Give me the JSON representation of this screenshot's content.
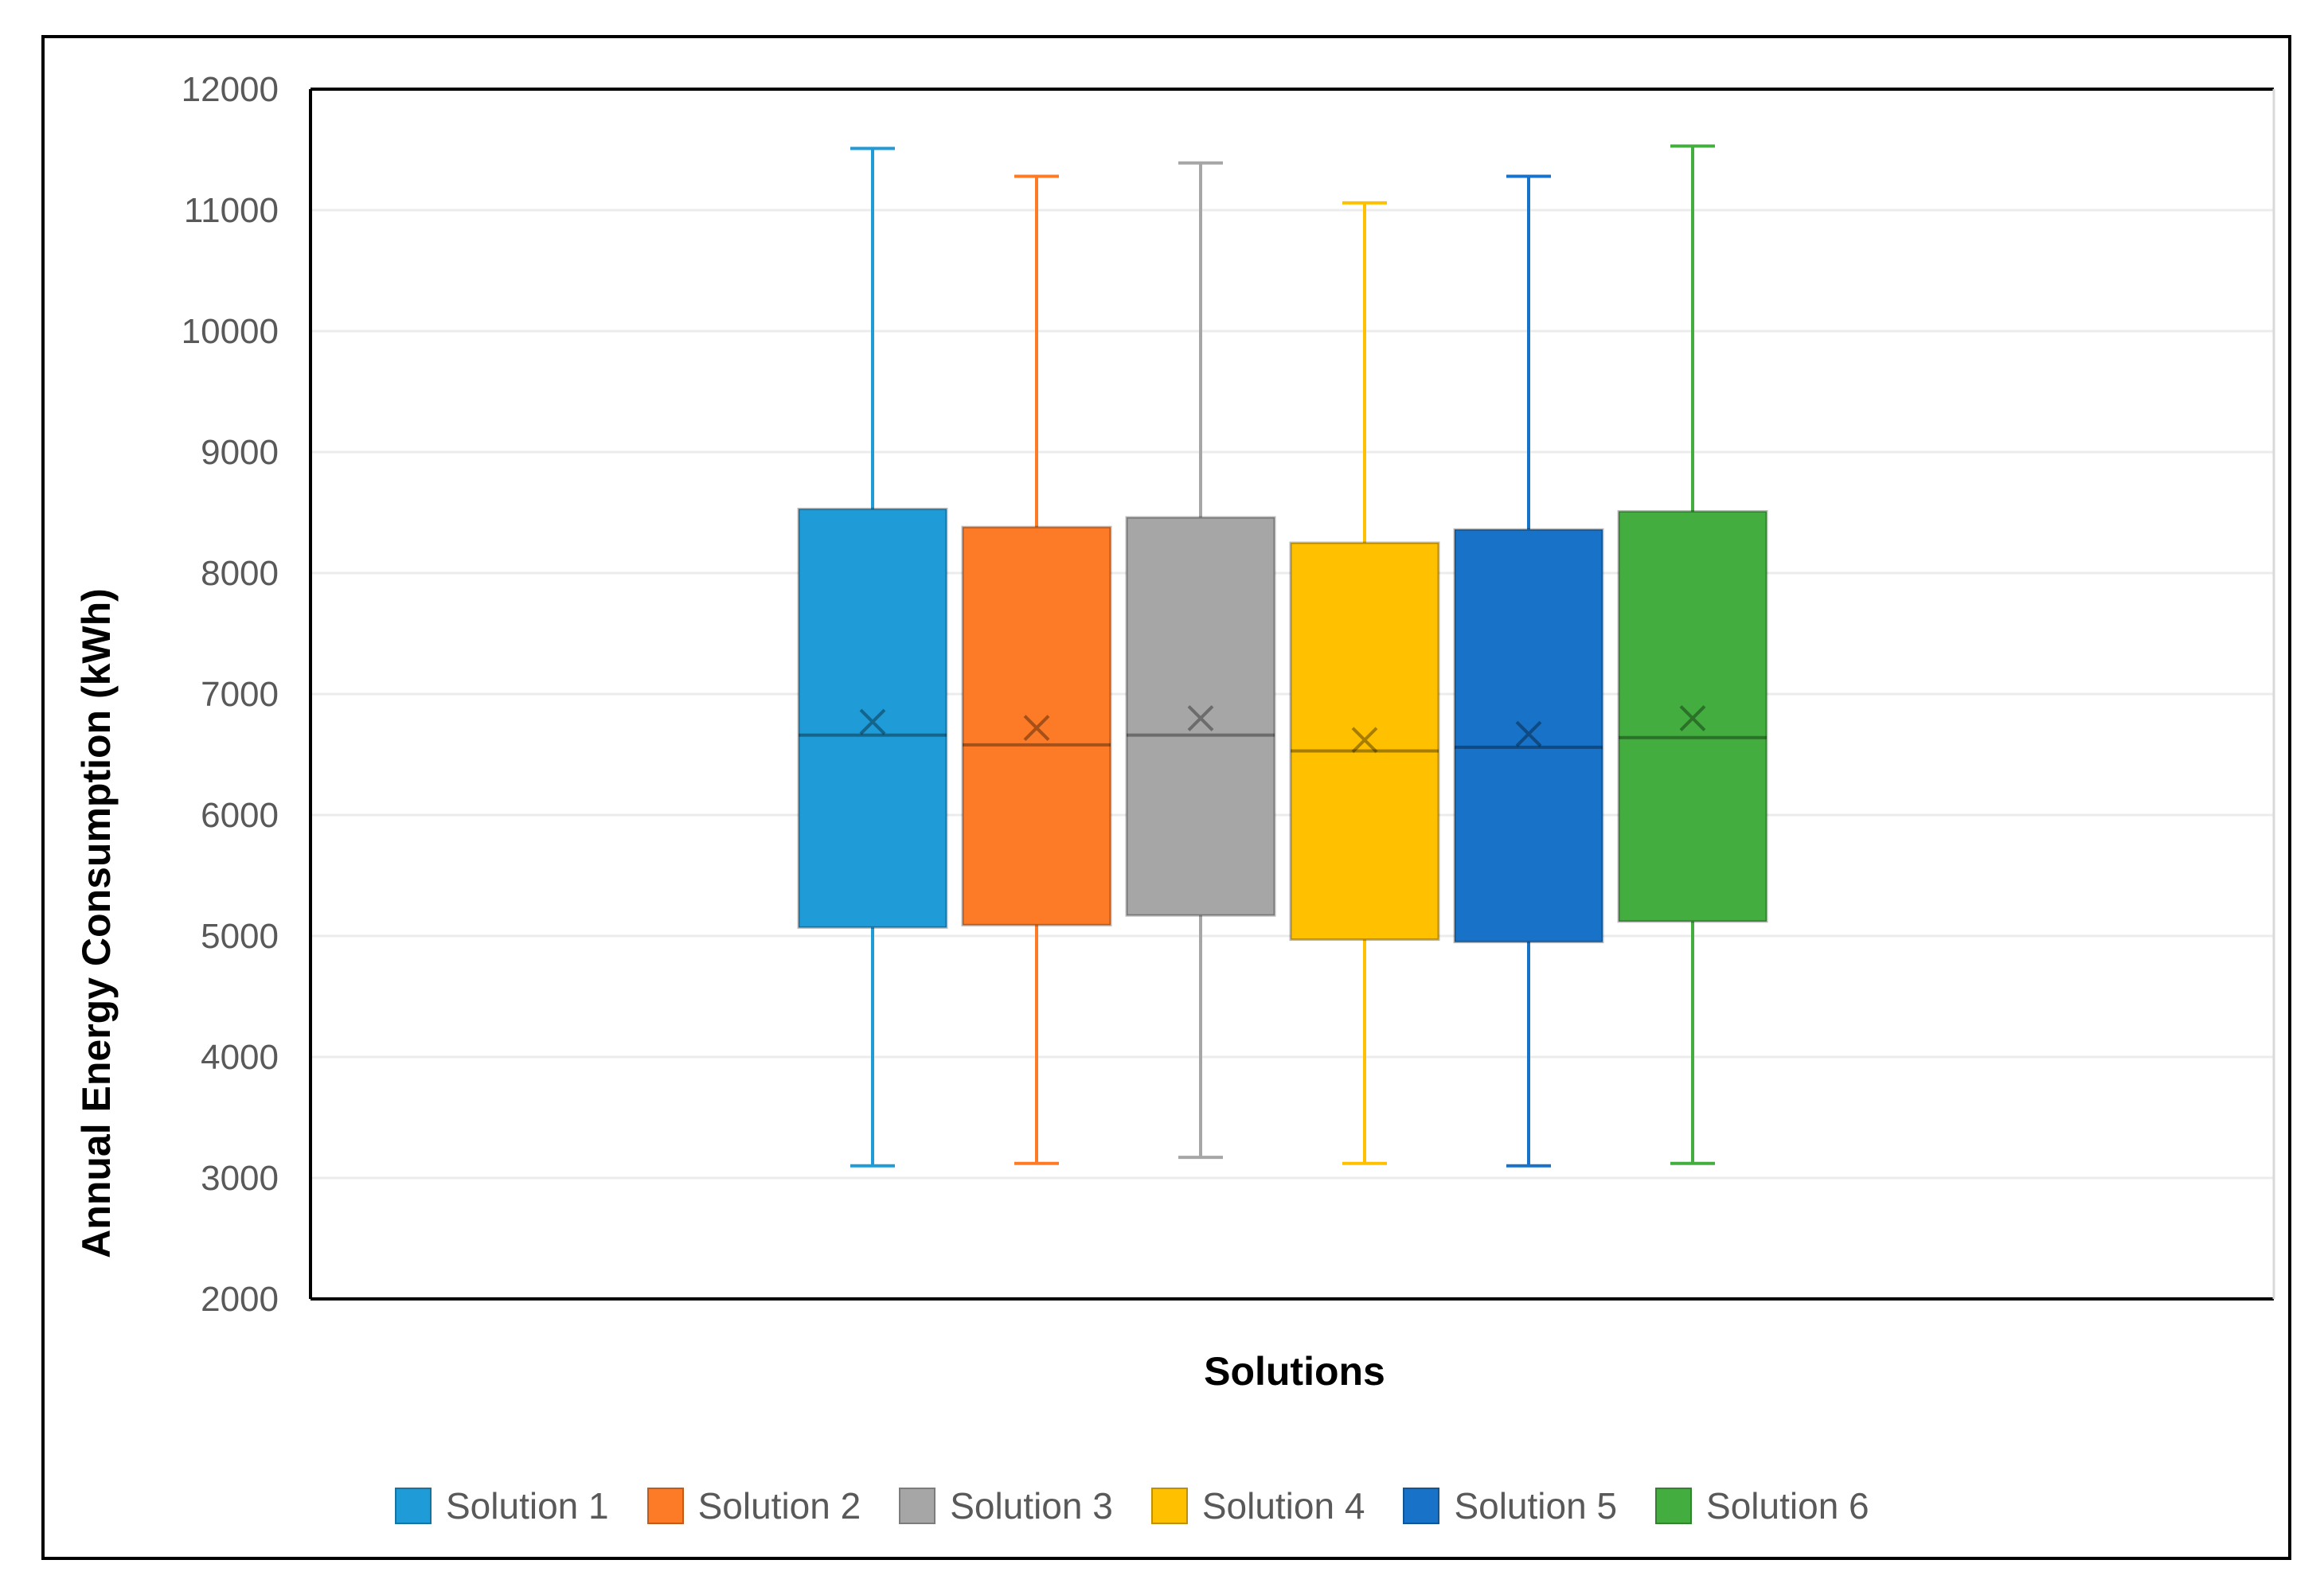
{
  "chart_data": {
    "type": "box",
    "xlabel": "Solutions",
    "ylabel": "Annual Energy Consumption (kWh)",
    "ylim": [
      2000,
      12000
    ],
    "yticks": [
      "2000",
      "3000",
      "4000",
      "5000",
      "6000",
      "7000",
      "8000",
      "9000",
      "10000",
      "11000",
      "12000"
    ],
    "grid": true,
    "legend_position": "bottom",
    "series": [
      {
        "name": "Solution 1",
        "color": "#1F9BD7",
        "min": 3100,
        "q1": 5070,
        "median": 6660,
        "q3": 8530,
        "max": 11510,
        "mean": 6770
      },
      {
        "name": "Solution 2",
        "color": "#FD7B27",
        "min": 3120,
        "q1": 5090,
        "median": 6580,
        "q3": 8380,
        "max": 11280,
        "mean": 6720
      },
      {
        "name": "Solution 3",
        "color": "#A6A6A6",
        "min": 3170,
        "q1": 5170,
        "median": 6660,
        "q3": 8460,
        "max": 11390,
        "mean": 6800
      },
      {
        "name": "Solution 4",
        "color": "#FFC000",
        "min": 3120,
        "q1": 4970,
        "median": 6530,
        "q3": 8250,
        "max": 11060,
        "mean": 6620
      },
      {
        "name": "Solution 5",
        "color": "#1872C8",
        "min": 3100,
        "q1": 4950,
        "median": 6560,
        "q3": 8360,
        "max": 11280,
        "mean": 6670
      },
      {
        "name": "Solution 6",
        "color": "#43AE3F",
        "min": 3120,
        "q1": 5120,
        "median": 6640,
        "q3": 8510,
        "max": 11530,
        "mean": 6800
      }
    ]
  }
}
